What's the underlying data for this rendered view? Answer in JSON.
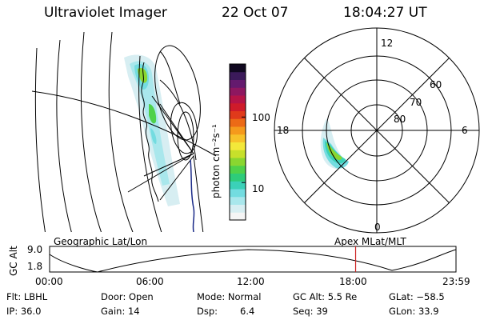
{
  "header": {
    "instrument": "Ultraviolet Imager",
    "date": "22 Oct 07",
    "time": "18:04:27 UT"
  },
  "colorbar": {
    "label": "photon cm⁻²s⁻¹",
    "ticks": [
      "100",
      "10"
    ],
    "colors": [
      "#f5f5f5",
      "#d7eef2",
      "#a9e7ec",
      "#73dce0",
      "#3bd1b8",
      "#2ecc7a",
      "#4fd14a",
      "#8ad630",
      "#c7e02b",
      "#f3e83a",
      "#f7c22a",
      "#f59a1c",
      "#ec6a16",
      "#e03a1b",
      "#cf1b2a",
      "#b51447",
      "#8e1760",
      "#641a6e",
      "#3b1a5a",
      "#100820"
    ],
    "value_marker_fraction_100": 0.66,
    "value_marker_fraction_10": 0.24
  },
  "geo_panel": {
    "label": "Geographic Lat/Lon"
  },
  "polar_panel": {
    "label": "Apex  MLat/MLT",
    "mlt_labels": [
      "12",
      "18",
      "6",
      "0"
    ],
    "mlat_labels": [
      "60",
      "70",
      "80"
    ]
  },
  "timeline": {
    "ylabel": "GC Alt",
    "y_ticks": [
      "9.0",
      "1.8"
    ],
    "x_ticks": [
      "00:00",
      "06:00",
      "12:00",
      "18:00",
      "23:59"
    ],
    "current_time_fraction": 0.753,
    "marker_color": "#cc2222"
  },
  "footer": {
    "flt": "Flt: LBHL",
    "ip": "IP: 36.0",
    "door": "Door: Open",
    "gain": "Gain: 14",
    "mode": "Mode: Normal",
    "dsp": "Dsp:",
    "dsp_value": "6.4",
    "gc_alt": "GC Alt: 5.5 Re",
    "seq": "Seq: 39",
    "glat": "GLat: −58.5",
    "glon": "GLon:  33.9"
  }
}
